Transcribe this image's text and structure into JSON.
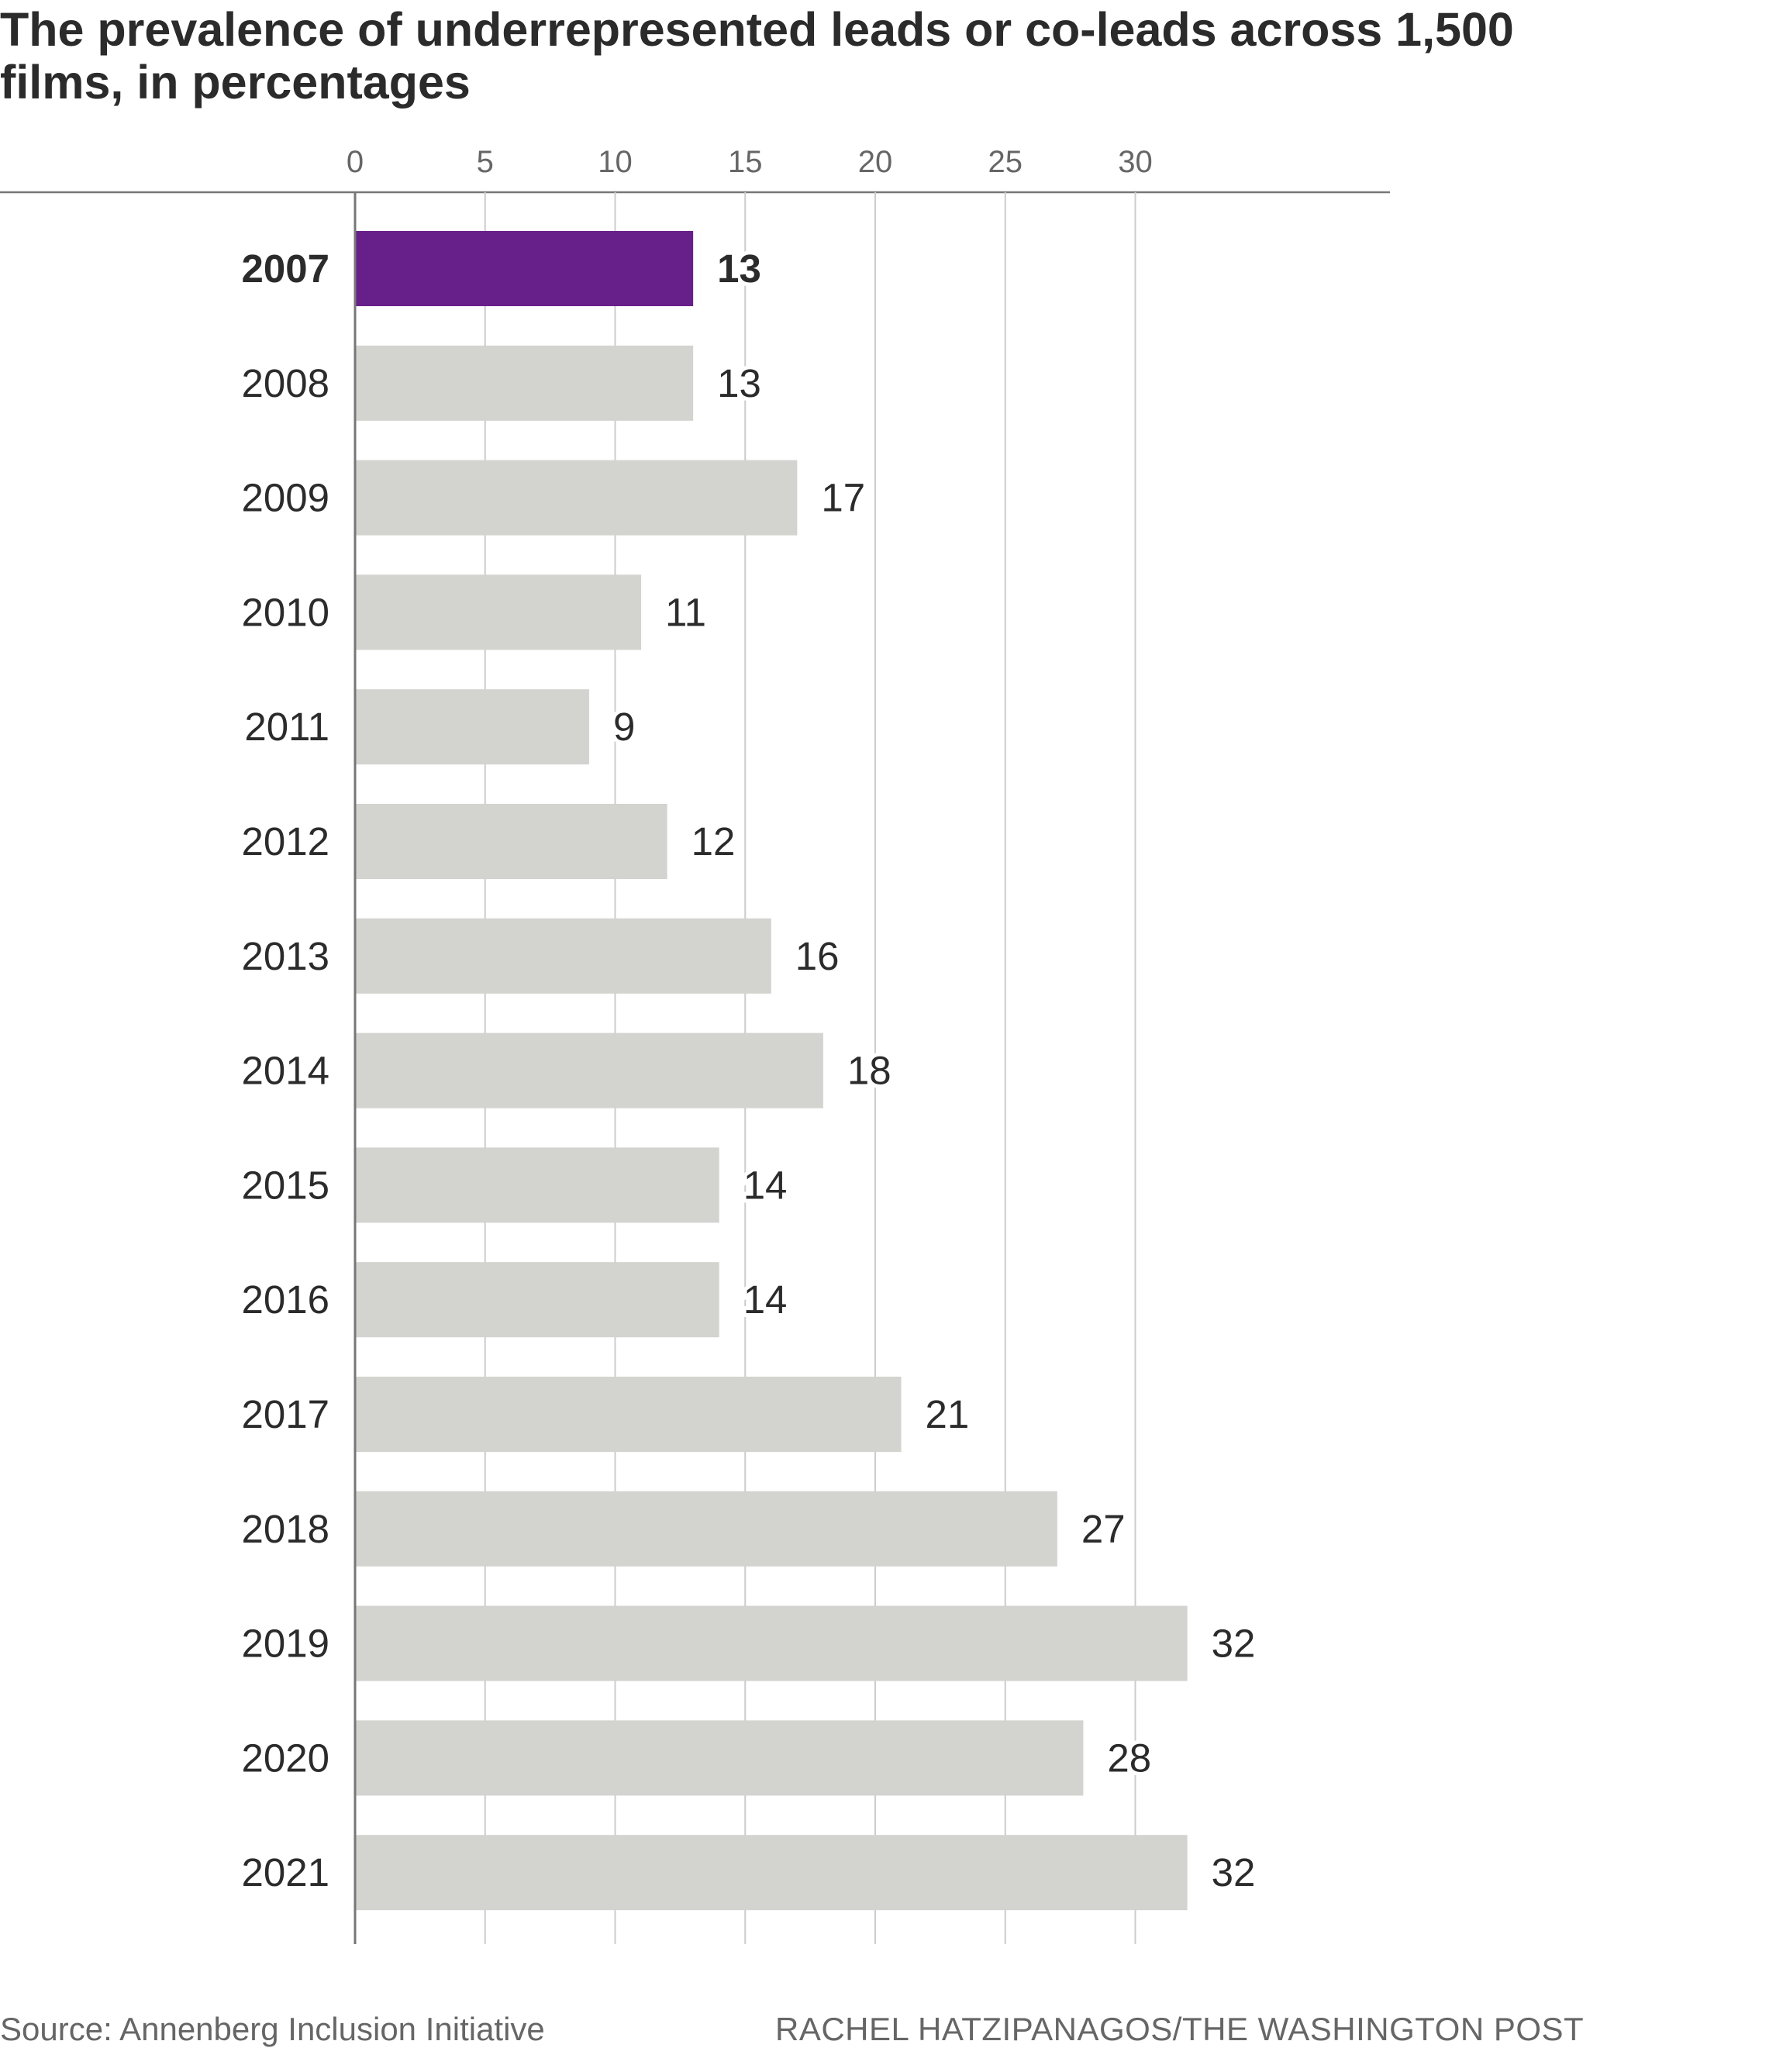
{
  "title": "The prevalence of underrepresented leads or co-leads across 1,500 films, in percentages",
  "source": "Source: Annenberg Inclusion Initiative",
  "credit": "RACHEL HATZIPANAGOS/THE WASHINGTON POST",
  "colors": {
    "highlight": "#67208a",
    "bar": "#d3d3cf",
    "grid": "#cccccc",
    "axis": "#777777",
    "text": "#2b2b2b",
    "tick_text": "#666666"
  },
  "chart_data": {
    "type": "bar",
    "orientation": "horizontal",
    "title": "The prevalence of underrepresented leads or co-leads across 1,500 films, in percentages",
    "categories": [
      "2007",
      "2008",
      "2009",
      "2010",
      "2011",
      "2012",
      "2013",
      "2014",
      "2015",
      "2016",
      "2017",
      "2018",
      "2019",
      "2020",
      "2021"
    ],
    "values": [
      13,
      13,
      17,
      11,
      9,
      12,
      16,
      18,
      14,
      14,
      21,
      27,
      32,
      28,
      32
    ],
    "data_labels": [
      "13",
      "13",
      "17",
      "11",
      "9",
      "12",
      "16",
      "18",
      "14",
      "14",
      "21",
      "27",
      "32",
      "28",
      "32"
    ],
    "highlight_category": "2007",
    "xlim": [
      0,
      40
    ],
    "xticks": [
      0,
      5,
      10,
      15,
      20,
      25,
      30
    ],
    "xtick_labels": [
      "0",
      "5",
      "10",
      "15",
      "20",
      "25",
      "30"
    ],
    "xaxis_position": "top",
    "grid": true,
    "legend": false
  }
}
